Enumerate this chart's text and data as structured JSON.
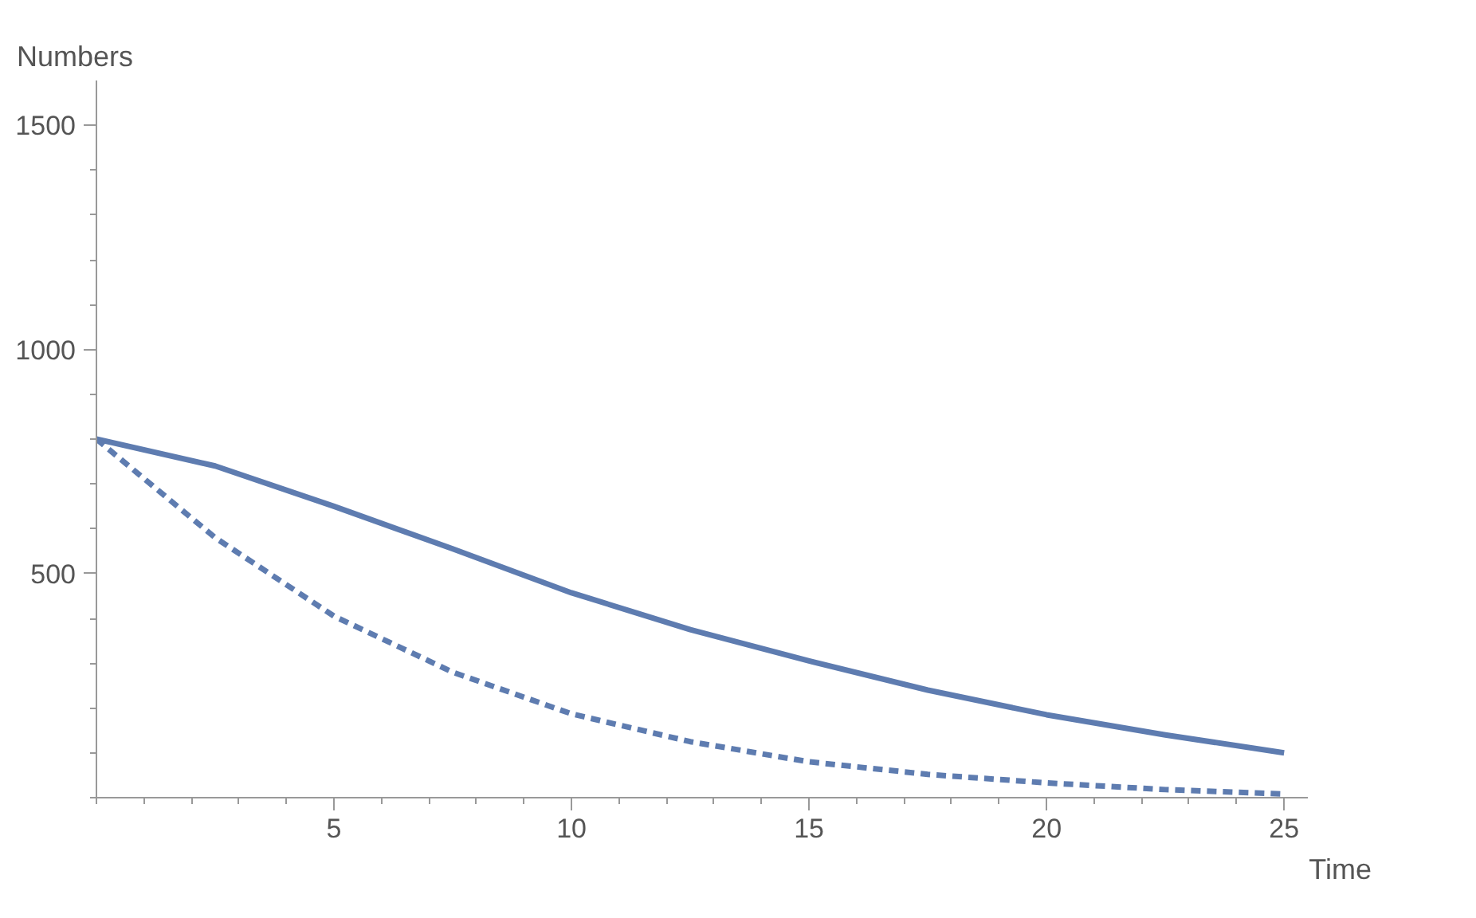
{
  "chart_data": {
    "type": "line",
    "xlabel": "Time",
    "ylabel": "Numbers",
    "x": [
      0,
      2.5,
      5,
      7.5,
      10,
      12.5,
      15,
      17.5,
      20,
      22.5,
      25
    ],
    "series": [
      {
        "color": "#5e7cb0",
        "line_style": "solid",
        "values": [
          800,
          740,
          650,
          555,
          457,
          375,
          305,
          240,
          185,
          140,
          100
        ]
      },
      {
        "color": "#5e7cb0",
        "line_style": "dashed",
        "values": [
          800,
          580,
          405,
          280,
          187,
          125,
          80,
          52,
          33,
          18,
          8
        ]
      }
    ],
    "xlim": [
      0,
      25.5
    ],
    "ylim": [
      0,
      1600
    ],
    "xticks": [
      5,
      10,
      15,
      20,
      25
    ],
    "yticks": [
      500,
      1000,
      1500
    ],
    "grid": false
  }
}
